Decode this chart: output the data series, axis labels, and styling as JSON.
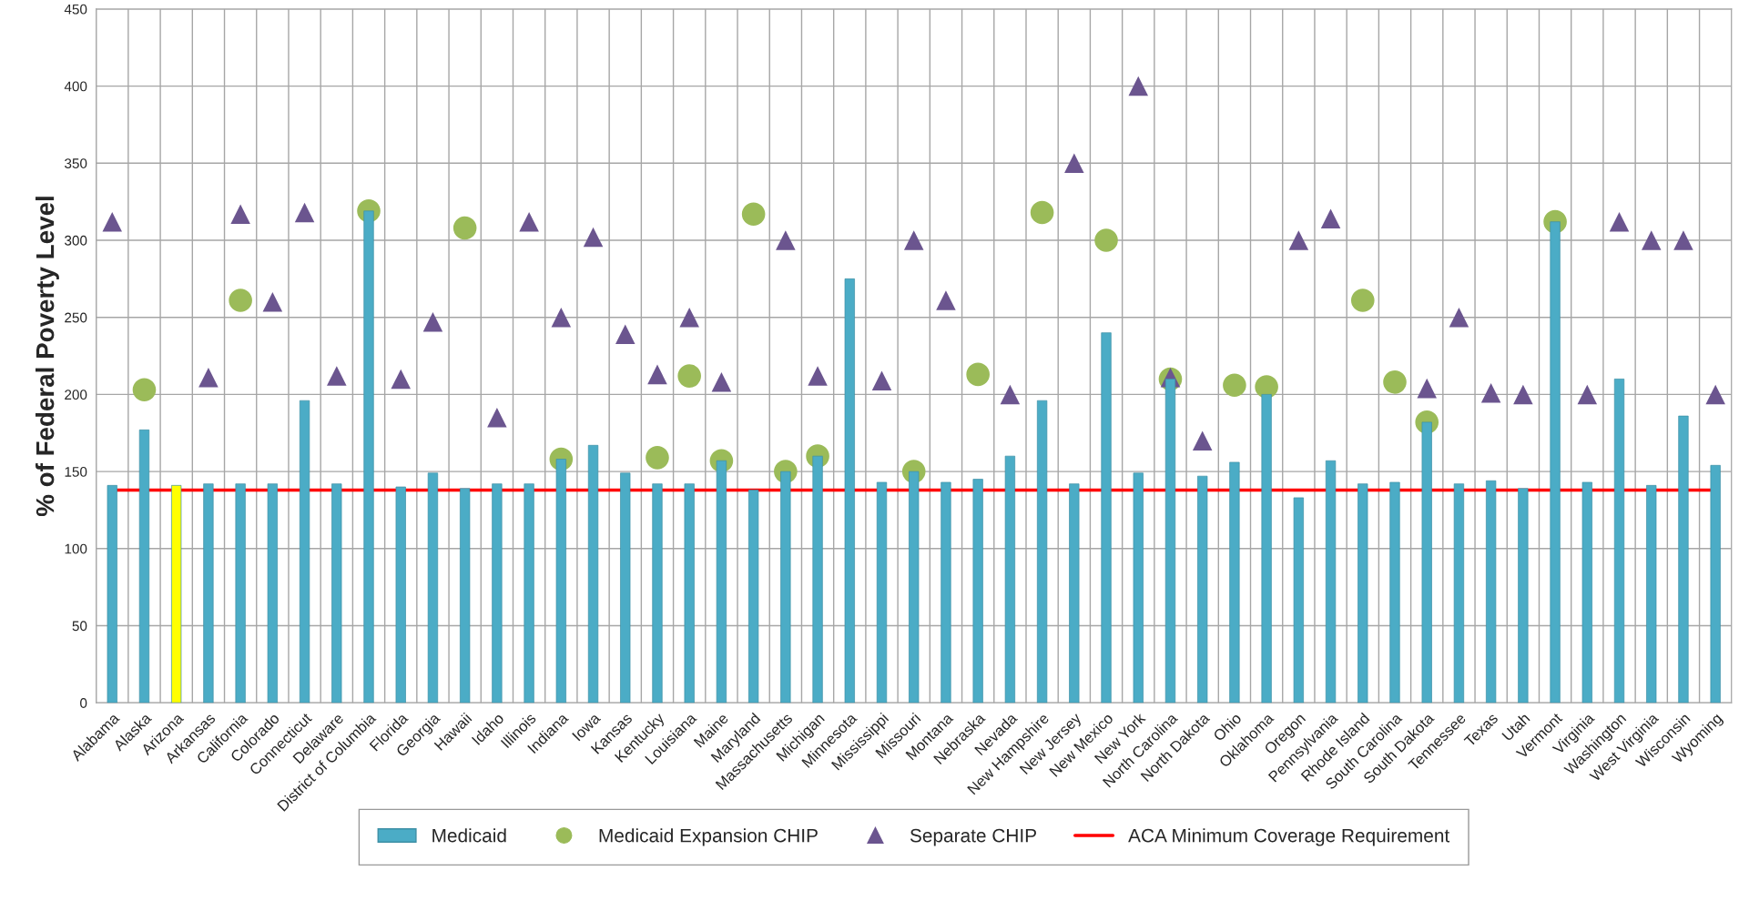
{
  "chart_data": {
    "type": "bar",
    "ylabel": "% of Federal Poverty Level",
    "categories": [
      "Alabama",
      "Alaska",
      "Arizona",
      "Arkansas",
      "California",
      "Colorado",
      "Connecticut",
      "Delaware",
      "District of Columbia",
      "Florida",
      "Georgia",
      "Hawaii",
      "Idaho",
      "Illinois",
      "Indiana",
      "Iowa",
      "Kansas",
      "Kentucky",
      "Louisiana",
      "Maine",
      "Maryland",
      "Massachusetts",
      "Michigan",
      "Minnesota",
      "Mississippi",
      "Missouri",
      "Montana",
      "Nebraska",
      "Nevada",
      "New Hampshire",
      "New Jersey",
      "New Mexico",
      "New York",
      "North Carolina",
      "North Dakota",
      "Ohio",
      "Oklahoma",
      "Oregon",
      "Pennsylvania",
      "Rhode Island",
      "South Carolina",
      "South Dakota",
      "Tennessee",
      "Texas",
      "Utah",
      "Vermont",
      "Virginia",
      "Washington",
      "West Virginia",
      "Wisconsin",
      "Wyoming"
    ],
    "series": [
      {
        "name": "Medicaid",
        "color": "#4bacc6",
        "colors": [
          "#4bacc6",
          "#4bacc6",
          "#ffff00",
          "#4bacc6",
          "#4bacc6",
          "#4bacc6",
          "#4bacc6",
          "#4bacc6",
          "#4bacc6",
          "#4bacc6",
          "#4bacc6",
          "#4bacc6",
          "#4bacc6",
          "#4bacc6",
          "#4bacc6",
          "#4bacc6",
          "#4bacc6",
          "#4bacc6",
          "#4bacc6",
          "#4bacc6",
          "#4bacc6",
          "#4bacc6",
          "#4bacc6",
          "#4bacc6",
          "#4bacc6",
          "#4bacc6",
          "#4bacc6",
          "#4bacc6",
          "#4bacc6",
          "#4bacc6",
          "#4bacc6",
          "#4bacc6",
          "#4bacc6",
          "#4bacc6",
          "#4bacc6",
          "#4bacc6",
          "#4bacc6",
          "#4bacc6",
          "#4bacc6",
          "#4bacc6",
          "#4bacc6",
          "#4bacc6",
          "#4bacc6",
          "#4bacc6",
          "#4bacc6",
          "#4bacc6",
          "#4bacc6",
          "#4bacc6",
          "#4bacc6",
          "#4bacc6",
          "#4bacc6"
        ],
        "values": [
          141,
          177,
          141,
          142,
          142,
          142,
          196,
          142,
          319,
          140,
          149,
          139,
          142,
          142,
          158,
          167,
          149,
          142,
          142,
          157,
          138,
          150,
          160,
          275,
          143,
          150,
          143,
          145,
          160,
          196,
          142,
          240,
          149,
          210,
          147,
          156,
          200,
          133,
          157,
          142,
          143,
          182,
          142,
          144,
          139,
          312,
          143,
          210,
          141,
          186,
          154
        ]
      },
      {
        "name": "Medicaid Expansion CHIP",
        "type": "scatter",
        "marker": "circle",
        "color": "#9bbb59",
        "values": [
          null,
          203,
          null,
          null,
          261,
          null,
          null,
          null,
          319,
          null,
          null,
          308,
          null,
          null,
          158,
          null,
          null,
          159,
          212,
          157,
          317,
          150,
          160,
          null,
          null,
          150,
          null,
          213,
          null,
          318,
          null,
          300,
          null,
          210,
          null,
          206,
          205,
          null,
          null,
          261,
          208,
          182,
          null,
          null,
          null,
          312,
          null,
          null,
          null,
          null,
          null
        ]
      },
      {
        "name": "Separate CHIP",
        "type": "scatter",
        "marker": "triangle",
        "color": "#6b558f",
        "values": [
          312,
          null,
          null,
          211,
          317,
          260,
          318,
          212,
          null,
          210,
          247,
          null,
          185,
          312,
          250,
          302,
          239,
          213,
          250,
          208,
          null,
          300,
          212,
          null,
          209,
          300,
          261,
          null,
          200,
          null,
          350,
          null,
          400,
          211,
          170,
          null,
          null,
          300,
          314,
          null,
          null,
          204,
          250,
          201,
          200,
          null,
          200,
          312,
          300,
          300,
          200
        ]
      }
    ],
    "ref_lines": [
      {
        "axis": "y",
        "value": 138,
        "label": "ACA Minimum Coverage Requirement",
        "color": "#ff0000",
        "line_style": "solid"
      }
    ],
    "ylim": [
      0,
      450
    ],
    "yticks": [
      0,
      50,
      100,
      150,
      200,
      250,
      300,
      350,
      400,
      450
    ],
    "grid": true,
    "legend": "bottom"
  }
}
